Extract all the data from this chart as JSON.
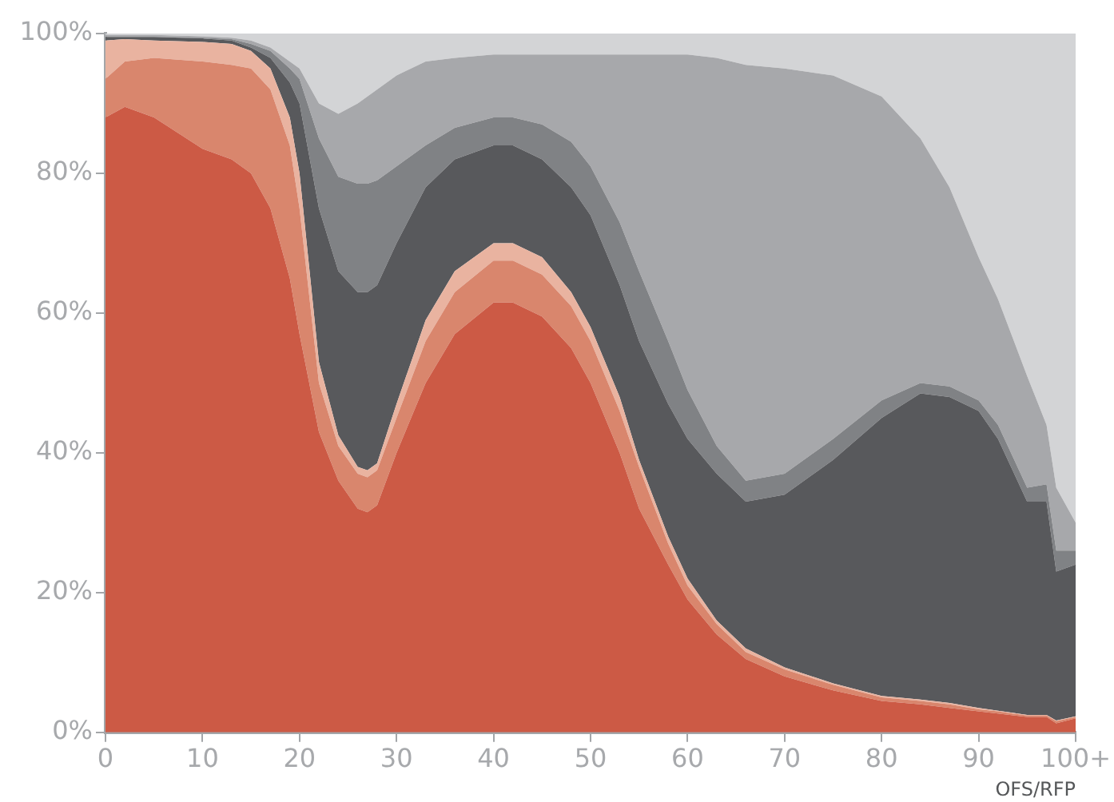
{
  "chart_data": {
    "type": "area",
    "stacked": true,
    "xlabel": "OFS/RFP",
    "xlim": [
      0,
      100
    ],
    "xticks": [
      0,
      10,
      20,
      30,
      40,
      50,
      60,
      70,
      80,
      90,
      {
        "value": 100,
        "label": "100+"
      }
    ],
    "ylim": [
      0,
      100
    ],
    "yticks": [
      {
        "value": 0,
        "label": "0%"
      },
      {
        "value": 20,
        "label": "20%"
      },
      {
        "value": 40,
        "label": "40%"
      },
      {
        "value": 60,
        "label": "60%"
      },
      {
        "value": 80,
        "label": "80%"
      },
      {
        "value": 100,
        "label": "100%"
      }
    ],
    "grid": false,
    "legend": false,
    "x": [
      0,
      2,
      5,
      10,
      13,
      15,
      17,
      19,
      20,
      22,
      24,
      26,
      27,
      28,
      30,
      33,
      36,
      40,
      42,
      45,
      48,
      50,
      53,
      55,
      58,
      60,
      63,
      66,
      70,
      75,
      80,
      84,
      87,
      90,
      92,
      95,
      97,
      98,
      100
    ],
    "series": [
      {
        "color": "#cc5a45",
        "values": [
          88,
          89.5,
          88,
          83.5,
          82,
          80,
          75,
          65,
          57,
          43,
          36,
          32,
          31.5,
          32.5,
          40,
          50,
          57,
          61.5,
          61.5,
          59.5,
          55,
          50,
          40,
          32,
          24,
          19,
          14,
          10.5,
          8,
          6,
          4.5,
          4,
          3.5,
          3,
          2.7,
          2.2,
          2.2,
          1.3,
          2
        ]
      },
      {
        "color": "#d9866d",
        "values": [
          5.5,
          6.5,
          8.5,
          12.5,
          13.5,
          15,
          17,
          19,
          18,
          7,
          5,
          5,
          5,
          5,
          5,
          6,
          6,
          6,
          6,
          6,
          6,
          6,
          6,
          6,
          3,
          2,
          1.5,
          1,
          1,
          0.8,
          0.5,
          0.5,
          0.5,
          0.3,
          0.3,
          0.2,
          0.2,
          0.3,
          0.2
        ]
      },
      {
        "color": "#e9b3a0",
        "values": [
          5.5,
          3.2,
          2.5,
          2.8,
          3,
          2.5,
          3,
          4,
          5,
          3,
          1.5,
          1,
          1,
          1,
          2,
          3,
          3,
          2.5,
          2.5,
          2.5,
          2,
          2,
          2,
          1,
          1,
          1,
          0.5,
          0.5,
          0.3,
          0.2,
          0.2,
          0.2,
          0.2,
          0.2,
          0.1,
          0.1,
          0.1,
          0.1,
          0.1
        ]
      },
      {
        "color": "#58595c",
        "values": [
          0.5,
          0.3,
          0.5,
          0.5,
          0.5,
          0.5,
          1.5,
          5,
          10,
          22,
          23.5,
          25,
          25.5,
          25.5,
          23,
          19,
          16,
          14,
          14,
          14,
          15,
          16,
          16,
          17,
          19,
          20,
          21,
          21,
          24.7,
          32,
          39.8,
          43.8,
          43.8,
          42.5,
          38.9,
          30.5,
          30.5,
          21.3,
          21.7
        ]
      },
      {
        "color": "#808285",
        "values": [
          0,
          0,
          0,
          0.1,
          0.2,
          0.5,
          1,
          2,
          3.5,
          10,
          13.5,
          15.5,
          15.5,
          15,
          11,
          6,
          4.5,
          4,
          4,
          5,
          6.5,
          7,
          9,
          10,
          9,
          7,
          4,
          3,
          3,
          3,
          2.5,
          1.5,
          1.5,
          1.5,
          2,
          2,
          2.5,
          3,
          2
        ]
      },
      {
        "color": "#a7a8ab",
        "values": [
          0.3,
          0.3,
          0.3,
          0.2,
          0.2,
          0.5,
          0.5,
          1,
          1.5,
          5,
          9,
          11.5,
          12.5,
          13,
          13,
          12,
          10,
          9,
          9,
          10,
          12.5,
          16,
          24,
          31,
          41,
          48,
          55.5,
          59.5,
          58,
          52,
          43.5,
          35,
          28.5,
          20.5,
          18,
          16,
          8.5,
          9,
          4
        ]
      },
      {
        "color": "#d3d4d6",
        "values": [
          0.2,
          0.2,
          0.2,
          0.4,
          0.6,
          1,
          2,
          4,
          5,
          10,
          11.5,
          10,
          9,
          8,
          6,
          4,
          3.5,
          3,
          3,
          3,
          3,
          3,
          3,
          3,
          3,
          3,
          3.5,
          4.5,
          5,
          6,
          9,
          15,
          22,
          32,
          38,
          49,
          56,
          65,
          70
        ]
      }
    ]
  }
}
